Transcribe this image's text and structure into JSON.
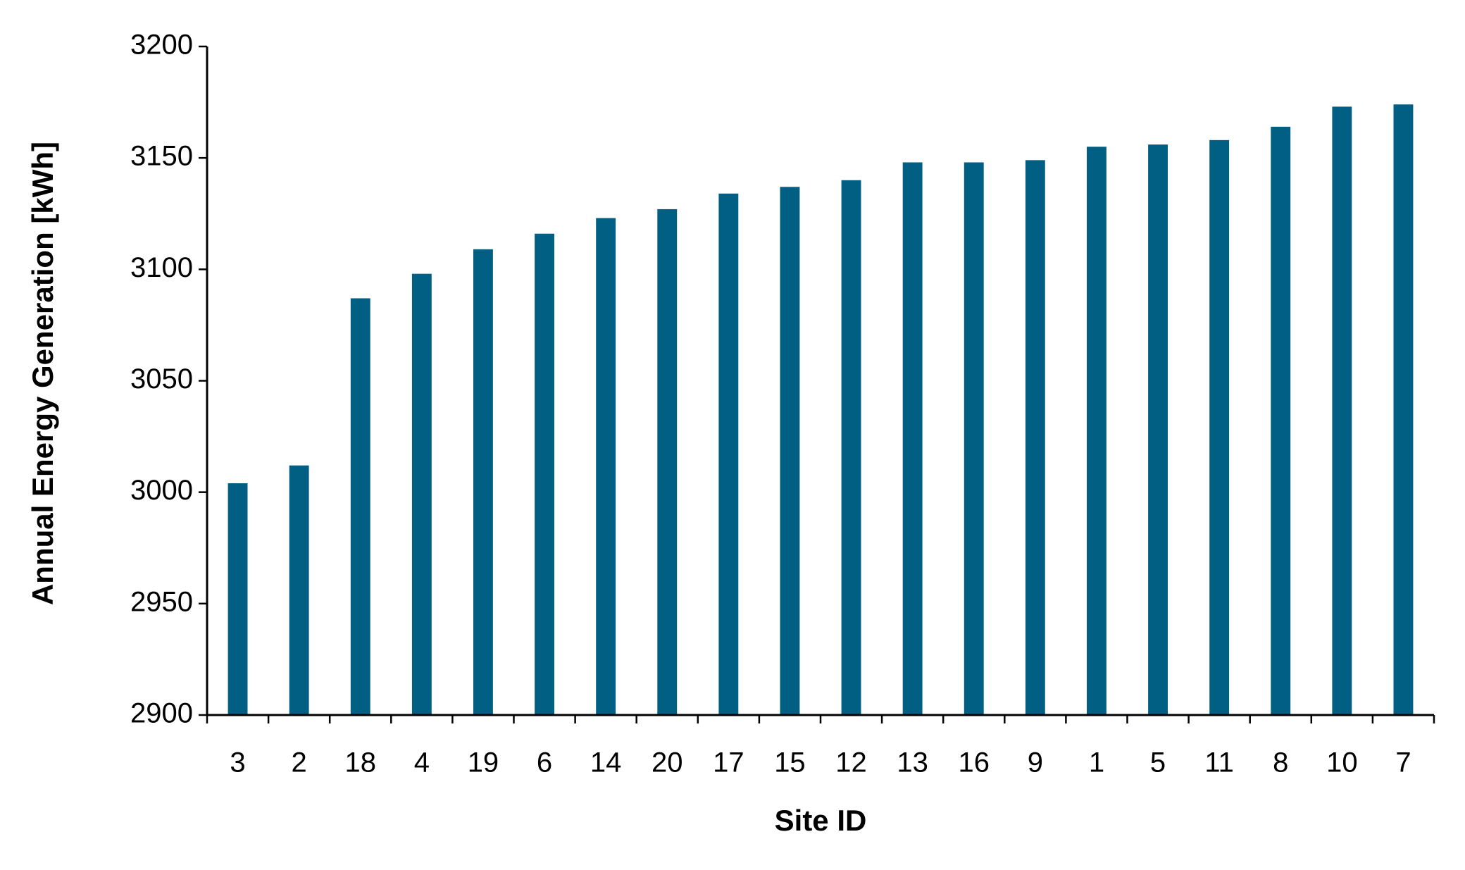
{
  "chart_data": {
    "type": "bar",
    "x_label": "Site ID",
    "y_label": "Annual Energy Generation [kWh]",
    "categories": [
      "3",
      "2",
      "18",
      "4",
      "19",
      "6",
      "14",
      "20",
      "17",
      "15",
      "12",
      "13",
      "16",
      "9",
      "1",
      "5",
      "11",
      "8",
      "10",
      "7"
    ],
    "values": [
      3004,
      3012,
      3087,
      3098,
      3109,
      3116,
      3123,
      3127,
      3134,
      3137,
      3140,
      3148,
      3148,
      3149,
      3155,
      3156,
      3158,
      3164,
      3173,
      3174
    ],
    "color": "#005f83",
    "ylim": [
      2900,
      3200
    ],
    "yticks": [
      2900,
      2950,
      3000,
      3050,
      3100,
      3150,
      3200
    ],
    "grid": false
  }
}
